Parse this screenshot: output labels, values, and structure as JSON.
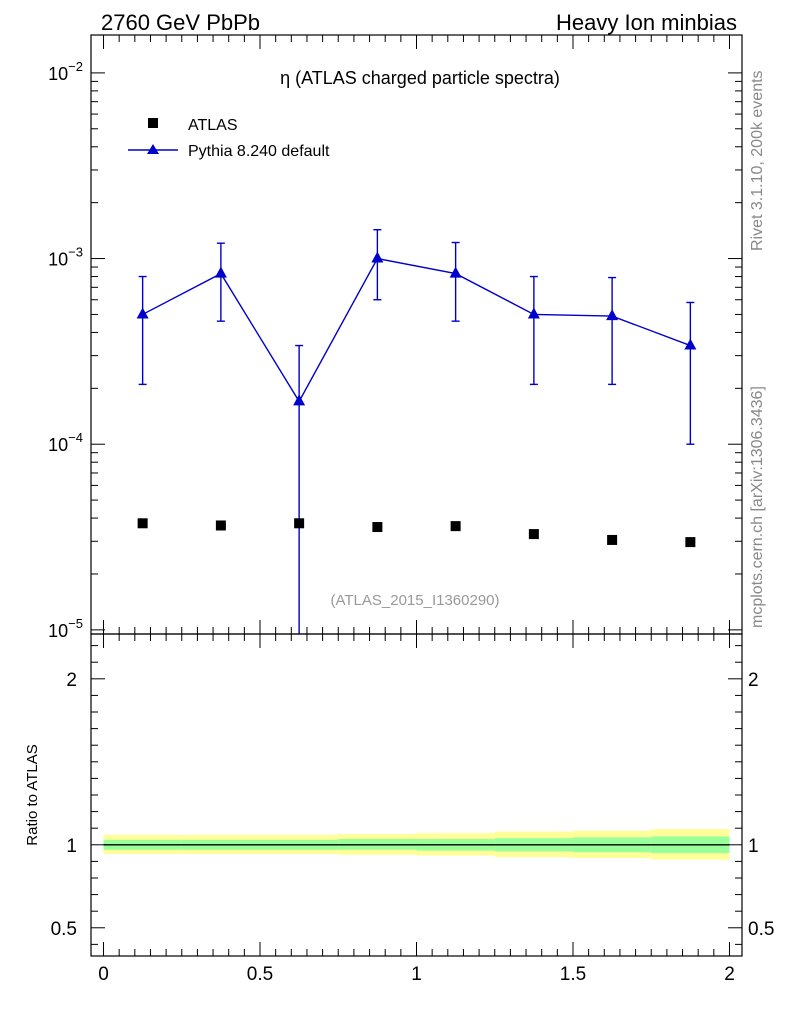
{
  "header": {
    "left": "2760 GeV PbPb",
    "right": "Heavy Ion minbias"
  },
  "side_labels": {
    "rivet": "Rivet 3.1.10,  200k events",
    "mcplots": "mcplots.cern.ch [arXiv:1306.3436]"
  },
  "chart_data": [
    {
      "type": "scatter",
      "panel": "main",
      "title": "η (ATLAS charged particle spectra)",
      "watermark": "(ATLAS_2015_I1360290)",
      "yscale": "log",
      "xlim": [
        -0.04,
        2.04
      ],
      "ylim": [
        9.5e-06,
        0.016
      ],
      "ytick_labels": [
        {
          "value": 0.01,
          "base": "10",
          "exp": "−2"
        },
        {
          "value": 0.001,
          "base": "10",
          "exp": "−3"
        },
        {
          "value": 0.0001,
          "base": "10",
          "exp": "−4"
        },
        {
          "value": 1e-05,
          "base": "10",
          "exp": "−5"
        }
      ],
      "legend_position": "top-left",
      "series": [
        {
          "name": "ATLAS",
          "marker": "square",
          "color": "#000000",
          "x": [
            0.125,
            0.375,
            0.625,
            0.875,
            1.125,
            1.375,
            1.625,
            1.875
          ],
          "y": [
            3.75e-05,
            3.65e-05,
            3.75e-05,
            3.58e-05,
            3.62e-05,
            3.28e-05,
            3.05e-05,
            2.97e-05
          ]
        },
        {
          "name": "Pythia 8.240 default",
          "marker": "triangle",
          "color": "#0000cc",
          "x": [
            0.125,
            0.375,
            0.625,
            0.875,
            1.125,
            1.375,
            1.625,
            1.875
          ],
          "y": [
            0.0005,
            0.00083,
            0.00017,
            0.001,
            0.00083,
            0.0005,
            0.00049,
            0.00034
          ],
          "yerr_low": [
            0.00029,
            0.00037,
            0.00017,
            0.0004,
            0.00037,
            0.00029,
            0.00028,
            0.00024
          ],
          "yerr_high": [
            0.0003,
            0.00038,
            0.00017,
            0.00043,
            0.00039,
            0.0003,
            0.0003,
            0.00024
          ]
        }
      ]
    },
    {
      "type": "area",
      "panel": "ratio",
      "ylabel": "Ratio to ATLAS",
      "xlim": [
        -0.04,
        2.04
      ],
      "ylim": [
        0.33,
        2.27
      ],
      "x_tick_labels": [
        "0",
        "0.5",
        "1",
        "1.5",
        "2"
      ],
      "x_tick_values": [
        0,
        0.5,
        1,
        1.5,
        2
      ],
      "y_tick_labels": [
        "0.5",
        "1",
        "2"
      ],
      "y_tick_values": [
        0.5,
        1,
        2
      ],
      "reference_line": 1,
      "bands": {
        "x_edges": [
          0,
          0.25,
          0.5,
          0.75,
          1.0,
          1.25,
          1.5,
          1.75,
          2.0
        ],
        "yellow_low": [
          0.945,
          0.945,
          0.945,
          0.94,
          0.935,
          0.925,
          0.92,
          0.91
        ],
        "yellow_high": [
          1.06,
          1.06,
          1.06,
          1.065,
          1.07,
          1.08,
          1.085,
          1.095
        ],
        "green_low": [
          0.97,
          0.97,
          0.97,
          0.97,
          0.965,
          0.96,
          0.955,
          0.95
        ],
        "green_high": [
          1.03,
          1.03,
          1.03,
          1.035,
          1.035,
          1.04,
          1.045,
          1.05
        ],
        "yellow_color": "#ffff99",
        "green_color": "#99ff99"
      }
    }
  ]
}
